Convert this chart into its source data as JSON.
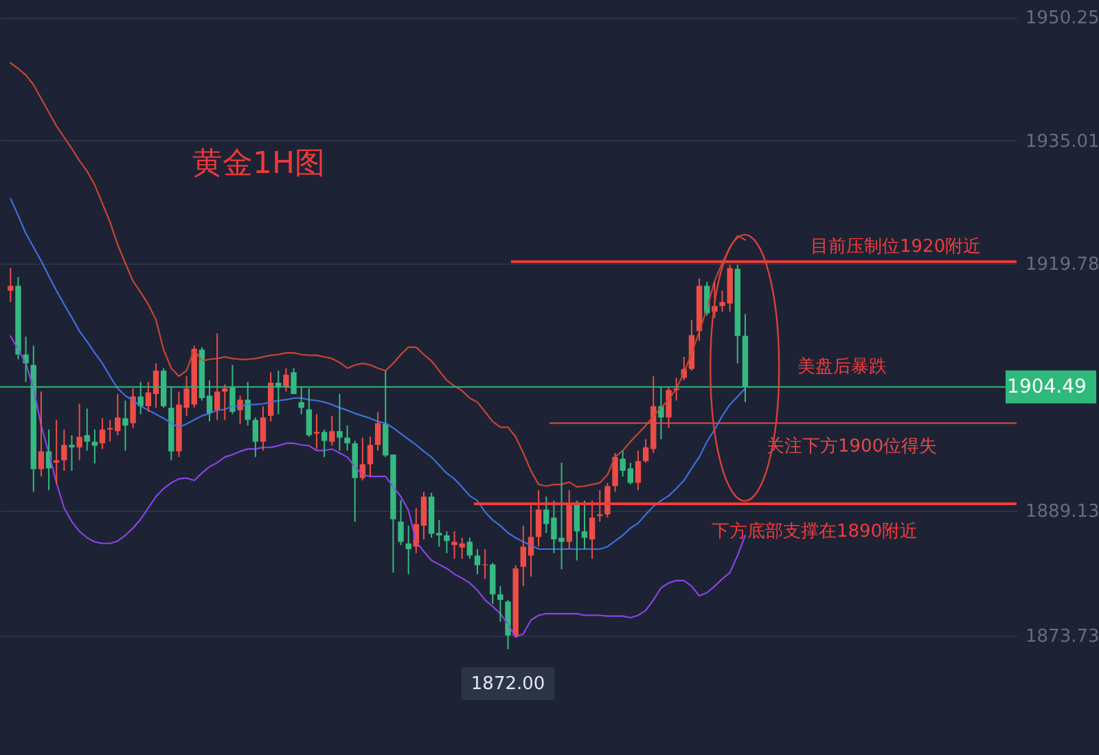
{
  "chart_data": {
    "type": "candlestick",
    "title": "黄金1H图",
    "categories": [
      null,
      null,
      null,
      null,
      null,
      null,
      null,
      null,
      null,
      null,
      null,
      null,
      null,
      null,
      null,
      null,
      null,
      null,
      null,
      null,
      null,
      null,
      null,
      null,
      null,
      null,
      null,
      null,
      null,
      null,
      null,
      null,
      null,
      null,
      null,
      null,
      null,
      null,
      null,
      null,
      null,
      null,
      null,
      null,
      null,
      null,
      null,
      null,
      null,
      null,
      null,
      null,
      null,
      null,
      null,
      null,
      null,
      null,
      null,
      null,
      null,
      null,
      null,
      null,
      null,
      null,
      null,
      null,
      null,
      null,
      null,
      null,
      null,
      null,
      null,
      null,
      null,
      null,
      null,
      null,
      null,
      null,
      null,
      null,
      null,
      null,
      null,
      null,
      null,
      null,
      null,
      null,
      null,
      null,
      null,
      null,
      null
    ],
    "ohlc": [
      [
        1916.4,
        1919.2,
        1915.0,
        1917.0
      ],
      [
        1917.0,
        1918.1,
        1907.9,
        1908.5
      ],
      [
        1908.5,
        1910.7,
        1905.1,
        1907.4
      ],
      [
        1907.2,
        1909.6,
        1891.5,
        1894.3
      ],
      [
        1894.3,
        1903.9,
        1893.4,
        1896.5
      ],
      [
        1896.5,
        1899.2,
        1891.7,
        1894.4
      ],
      [
        1895.1,
        1900.4,
        1892.4,
        1895.4
      ],
      [
        1895.4,
        1899.2,
        1894.1,
        1897.3
      ],
      [
        1897.3,
        1898.5,
        1894.1,
        1897.0
      ],
      [
        1897.0,
        1902.4,
        1895.4,
        1898.3
      ],
      [
        1898.5,
        1901.8,
        1896.6,
        1897.7
      ],
      [
        1897.7,
        1899.2,
        1895.0,
        1897.2
      ],
      [
        1897.5,
        1900.6,
        1896.8,
        1899.2
      ],
      [
        1899.2,
        1900.4,
        1897.7,
        1899.4
      ],
      [
        1899.0,
        1903.6,
        1898.5,
        1900.7
      ],
      [
        1900.6,
        1902.8,
        1896.6,
        1899.7
      ],
      [
        1900.0,
        1904.3,
        1899.4,
        1903.3
      ],
      [
        1903.3,
        1905.1,
        1901.1,
        1902.1
      ],
      [
        1902.1,
        1905.1,
        1901.4,
        1903.8
      ],
      [
        1903.6,
        1907.4,
        1901.9,
        1906.5
      ],
      [
        1906.5,
        1906.8,
        1901.9,
        1902.1
      ],
      [
        1901.9,
        1904.5,
        1895.4,
        1896.5
      ],
      [
        1896.5,
        1903.9,
        1895.8,
        1902.3
      ],
      [
        1901.9,
        1905.8,
        1900.9,
        1904.3
      ],
      [
        1902.3,
        1909.6,
        1901.9,
        1909.2
      ],
      [
        1909.1,
        1909.4,
        1902.8,
        1903.1
      ],
      [
        1903.4,
        1905.3,
        1900.2,
        1901.2
      ],
      [
        1901.6,
        1911.1,
        1900.4,
        1903.9
      ],
      [
        1903.9,
        1904.8,
        1900.4,
        1904.3
      ],
      [
        1904.5,
        1907.2,
        1901.1,
        1901.4
      ],
      [
        1901.6,
        1903.4,
        1899.9,
        1902.9
      ],
      [
        1902.9,
        1905.1,
        1899.7,
        1900.4
      ],
      [
        1900.4,
        1900.7,
        1895.8,
        1897.7
      ],
      [
        1897.7,
        1902.1,
        1896.6,
        1900.7
      ],
      [
        1900.9,
        1906.3,
        1900.2,
        1905.0
      ],
      [
        1905.0,
        1906.5,
        1901.1,
        1904.5
      ],
      [
        1904.5,
        1906.8,
        1903.9,
        1906.0
      ],
      [
        1906.3,
        1906.8,
        1903.6,
        1903.6
      ],
      [
        1902.6,
        1904.5,
        1901.1,
        1901.9
      ],
      [
        1901.7,
        1904.3,
        1898.3,
        1898.5
      ],
      [
        1898.7,
        1901.1,
        1896.8,
        1898.9
      ],
      [
        1898.9,
        1899.2,
        1895.8,
        1897.8
      ],
      [
        1897.7,
        1900.9,
        1897.2,
        1899.0
      ],
      [
        1899.0,
        1903.6,
        1896.6,
        1898.2
      ],
      [
        1898.2,
        1899.7,
        1896.6,
        1897.5
      ],
      [
        1897.5,
        1897.8,
        1887.8,
        1893.2
      ],
      [
        1893.2,
        1898.2,
        1892.9,
        1894.9
      ],
      [
        1894.9,
        1898.3,
        1893.4,
        1897.3
      ],
      [
        1897.3,
        1901.4,
        1896.6,
        1900.0
      ],
      [
        1899.9,
        1906.5,
        1895.8,
        1896.0
      ],
      [
        1896.1,
        1896.1,
        1881.5,
        1888.1
      ],
      [
        1887.8,
        1890.5,
        1884.9,
        1885.3
      ],
      [
        1885.1,
        1887.3,
        1881.3,
        1884.4
      ],
      [
        1884.7,
        1889.5,
        1883.9,
        1887.5
      ],
      [
        1887.3,
        1891.5,
        1885.6,
        1890.9
      ],
      [
        1890.9,
        1891.4,
        1885.8,
        1886.3
      ],
      [
        1886.4,
        1888.0,
        1884.7,
        1886.1
      ],
      [
        1886.1,
        1886.6,
        1883.9,
        1885.4
      ],
      [
        1884.9,
        1886.6,
        1883.2,
        1885.3
      ],
      [
        1884.6,
        1885.8,
        1883.2,
        1885.1
      ],
      [
        1885.3,
        1885.8,
        1883.2,
        1883.6
      ],
      [
        1883.6,
        1884.4,
        1881.3,
        1882.4
      ],
      [
        1882.4,
        1884.4,
        1880.7,
        1882.5
      ],
      [
        1882.5,
        1882.7,
        1877.6,
        1878.8
      ],
      [
        1878.8,
        1879.8,
        1875.4,
        1878.1
      ],
      [
        1877.9,
        1878.1,
        1872.0,
        1873.7
      ],
      [
        1873.7,
        1882.4,
        1873.5,
        1882.0
      ],
      [
        1882.2,
        1887.3,
        1879.8,
        1884.7
      ],
      [
        1883.6,
        1890.0,
        1881.0,
        1885.9
      ],
      [
        1885.9,
        1891.7,
        1884.7,
        1889.3
      ],
      [
        1889.3,
        1890.9,
        1886.4,
        1887.5
      ],
      [
        1888.3,
        1890.4,
        1883.9,
        1885.6
      ],
      [
        1885.8,
        1895.1,
        1881.9,
        1885.3
      ],
      [
        1885.3,
        1891.7,
        1884.4,
        1890.0
      ],
      [
        1890.2,
        1890.4,
        1883.0,
        1886.6
      ],
      [
        1886.6,
        1890.4,
        1884.4,
        1885.8
      ],
      [
        1885.6,
        1890.4,
        1883.2,
        1888.3
      ],
      [
        1888.5,
        1891.7,
        1887.8,
        1888.7
      ],
      [
        1888.7,
        1892.6,
        1888.3,
        1892.2
      ],
      [
        1892.2,
        1896.3,
        1891.5,
        1895.8
      ],
      [
        1895.6,
        1896.6,
        1893.4,
        1894.1
      ],
      [
        1894.4,
        1895.1,
        1892.4,
        1892.6
      ],
      [
        1892.6,
        1896.6,
        1891.7,
        1895.3
      ],
      [
        1895.3,
        1898.0,
        1895.1,
        1897.0
      ],
      [
        1896.8,
        1905.8,
        1896.3,
        1902.1
      ],
      [
        1902.1,
        1904.5,
        1898.0,
        1900.7
      ],
      [
        1900.7,
        1904.5,
        1899.4,
        1904.1
      ],
      [
        1904.1,
        1905.6,
        1902.8,
        1904.3
      ],
      [
        1905.6,
        1908.2,
        1905.3,
        1906.7
      ],
      [
        1906.7,
        1912.8,
        1906.5,
        1910.9
      ],
      [
        1911.4,
        1917.9,
        1910.2,
        1917.0
      ],
      [
        1917.0,
        1917.5,
        1913.3,
        1913.6
      ],
      [
        1913.8,
        1917.5,
        1913.0,
        1914.5
      ],
      [
        1914.5,
        1916.4,
        1913.8,
        1915.0
      ],
      [
        1914.8,
        1919.6,
        1913.8,
        1919.2
      ],
      [
        1919.1,
        1919.6,
        1907.4,
        1910.8
      ],
      [
        1910.8,
        1913.5,
        1902.6,
        1904.49
      ]
    ],
    "series": [
      {
        "type": "line",
        "color": "#c8452f",
        "values": [
          1944.6,
          1943.9,
          1943.1,
          1941.9,
          1940.2,
          1938.5,
          1936.8,
          1935.4,
          1934.0,
          1932.5,
          1931.2,
          1929.5,
          1927.2,
          1924.9,
          1922.1,
          1919.8,
          1917.6,
          1916.2,
          1914.7,
          1912.8,
          1909.1,
          1906.8,
          1905.8,
          1906.5,
          1909.1,
          1907.7,
          1907.9,
          1908.0,
          1908.2,
          1908.0,
          1907.9,
          1907.9,
          1908.0,
          1908.2,
          1908.4,
          1908.5,
          1908.7,
          1908.7,
          1908.5,
          1908.4,
          1908.4,
          1908.2,
          1908.0,
          1907.5,
          1906.8,
          1907.2,
          1907.4,
          1907.2,
          1906.8,
          1906.5,
          1907.4,
          1908.5,
          1909.4,
          1909.4,
          1908.5,
          1907.7,
          1906.5,
          1905.3,
          1904.6,
          1904.0,
          1903.1,
          1902.6,
          1901.4,
          1900.2,
          1899.5,
          1899.5,
          1898.3,
          1896.3,
          1894.1,
          1892.4,
          1892.2,
          1892.4,
          1892.4,
          1892.7,
          1892.1,
          1892.2,
          1892.4,
          1892.6,
          1893.6,
          1895.8,
          1896.6,
          1897.7,
          1898.7,
          1899.7,
          1900.9,
          1901.9,
          1902.9,
          1904.3,
          1906.2,
          1908.7,
          1911.3,
          1914.2,
          1917.6,
          1919.8,
          1921.8,
          1923.2,
          1922.7
        ]
      },
      {
        "type": "line",
        "color": "#3f6fe0",
        "values": [
          1927.8,
          1925.7,
          1923.5,
          1921.8,
          1920.1,
          1918.2,
          1916.4,
          1914.7,
          1913.1,
          1911.4,
          1910.1,
          1908.7,
          1907.4,
          1905.8,
          1904.3,
          1903.4,
          1902.8,
          1902.1,
          1901.6,
          1901.1,
          1900.6,
          1900.0,
          1899.5,
          1899.9,
          1900.4,
          1900.9,
          1901.2,
          1901.6,
          1901.7,
          1902.1,
          1902.1,
          1902.3,
          1902.3,
          1902.4,
          1902.6,
          1902.8,
          1902.9,
          1903.1,
          1903.1,
          1902.9,
          1902.8,
          1902.6,
          1902.3,
          1901.9,
          1901.6,
          1901.2,
          1900.9,
          1900.6,
          1900.2,
          1900.0,
          1899.4,
          1898.7,
          1898.0,
          1897.3,
          1896.5,
          1895.8,
          1894.8,
          1893.8,
          1893.1,
          1892.1,
          1891.0,
          1890.4,
          1889.0,
          1888.0,
          1887.3,
          1886.4,
          1885.8,
          1885.3,
          1884.9,
          1884.4,
          1884.4,
          1884.4,
          1884.4,
          1884.4,
          1884.4,
          1884.4,
          1884.4,
          1884.4,
          1884.7,
          1885.4,
          1886.1,
          1887.0,
          1887.6,
          1888.7,
          1889.7,
          1890.4,
          1891.0,
          1891.9,
          1892.9,
          1894.4,
          1895.8,
          1897.7,
          1899.2,
          1900.9,
          1902.3,
          1903.3,
          1904.3
        ]
      },
      {
        "type": "line",
        "color": "#8a43e6",
        "values": [
          1910.8,
          1909.1,
          1907.4,
          1904.3,
          1899.7,
          1896.3,
          1892.6,
          1889.5,
          1887.8,
          1886.6,
          1885.8,
          1885.3,
          1885.1,
          1885.1,
          1885.4,
          1886.1,
          1887.0,
          1888.1,
          1889.5,
          1890.9,
          1891.9,
          1892.6,
          1893.1,
          1893.2,
          1892.9,
          1893.8,
          1894.6,
          1895.1,
          1895.8,
          1896.1,
          1896.5,
          1896.8,
          1896.8,
          1897.0,
          1897.0,
          1897.2,
          1897.5,
          1897.5,
          1897.3,
          1897.2,
          1896.6,
          1896.6,
          1896.8,
          1896.3,
          1895.8,
          1894.6,
          1893.6,
          1893.4,
          1893.4,
          1893.4,
          1892.1,
          1890.9,
          1889.2,
          1885.3,
          1884.1,
          1883.0,
          1882.5,
          1882.0,
          1881.3,
          1880.8,
          1880.2,
          1879.3,
          1878.1,
          1877.3,
          1876.4,
          1875.1,
          1873.5,
          1873.9,
          1875.6,
          1876.2,
          1876.4,
          1876.4,
          1876.4,
          1876.4,
          1876.4,
          1876.2,
          1876.2,
          1876.2,
          1876.1,
          1876.1,
          1876.1,
          1875.9,
          1876.2,
          1876.8,
          1878.1,
          1879.6,
          1880.2,
          1880.5,
          1880.5,
          1879.8,
          1878.6,
          1879.0,
          1879.8,
          1880.7,
          1881.5,
          1883.6,
          1886.1
        ]
      }
    ],
    "ylim": [
      1858.9,
      1952.4
    ],
    "yticks": [
      1950.25,
      1935.01,
      1919.78,
      1889.13,
      1873.73
    ],
    "tick_labels": "y",
    "grid": "y",
    "ref_lines": [
      {
        "axis": "y",
        "value": 1920,
        "label": "目前压制位1920附近",
        "color": "#f23b3b"
      },
      {
        "axis": "y",
        "value": 1900,
        "label": "关注下方1900位得失",
        "color": "#e04a4a"
      },
      {
        "axis": "y",
        "value": 1890,
        "label": "下方底部支撑在1890附近",
        "color": "#f23b3b"
      },
      {
        "axis": "y",
        "value": 1904.49,
        "label": "1904.49",
        "color": "#2fb97a"
      }
    ],
    "annotations": [
      "美盘后暴跌",
      {
        "text": "1872.00",
        "y": 1872.0
      }
    ]
  }
}
